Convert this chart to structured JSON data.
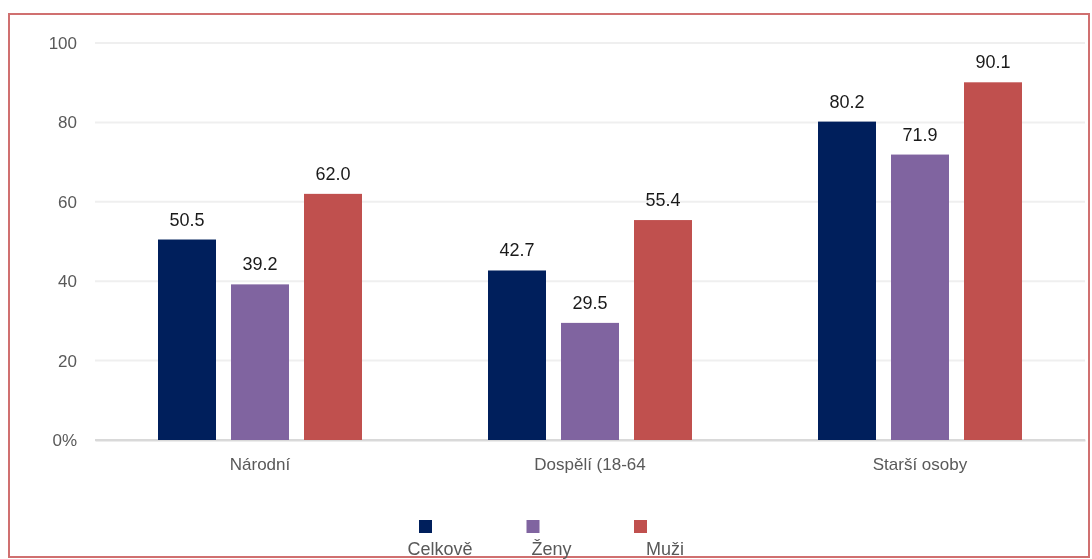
{
  "chart_data": {
    "type": "bar",
    "categories": [
      "Národní",
      "Dospělí (18-64",
      "Starší osoby"
    ],
    "series": [
      {
        "name": "Celkově",
        "color": "#001f5c",
        "values": [
          50.5,
          42.7,
          80.2
        ],
        "value_labels": [
          "50.5",
          "42.7",
          "80.2"
        ]
      },
      {
        "name": "Ženy",
        "color": "#8064a0",
        "values": [
          39.2,
          29.5,
          71.9
        ],
        "value_labels": [
          "39.2",
          "29.5",
          "71.9"
        ]
      },
      {
        "name": "Muži",
        "color": "#c0504e",
        "values": [
          62.0,
          55.4,
          90.1
        ],
        "value_labels": [
          "62.0",
          "55.4",
          "90.1"
        ]
      }
    ],
    "ylim": [
      0,
      100
    ],
    "yticks": [
      {
        "value": 0,
        "label": "0%"
      },
      20,
      40,
      60,
      80,
      100
    ],
    "grid": "y",
    "legend": "bottom"
  }
}
